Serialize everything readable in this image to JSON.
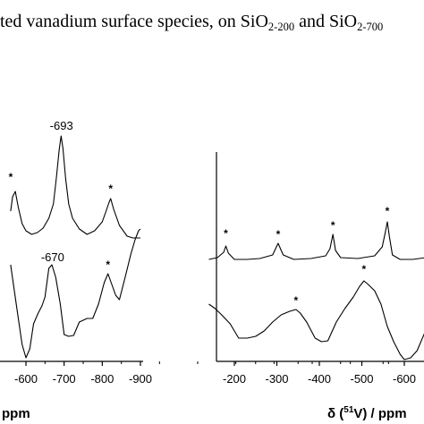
{
  "caption": {
    "part1": "ted vanadium surface species, on SiO",
    "sub1": "2-200",
    "part2": " and SiO",
    "sub2": "2-700"
  },
  "chart_data": [
    {
      "type": "line",
      "xlabel_visible": "ppm",
      "x_tick_labels": [
        "-600",
        "-700",
        "-800",
        "-900"
      ],
      "xlim": [
        -560,
        -900
      ],
      "x_reversed": true,
      "series": [
        {
          "points": [
            [
              -560,
              236
            ],
            [
              -565,
              220
            ],
            [
              -572,
              214
            ],
            [
              -580,
              232
            ],
            [
              -590,
              250
            ],
            [
              -600,
              258
            ],
            [
              -615,
              262
            ],
            [
              -630,
              260
            ],
            [
              -645,
              255
            ],
            [
              -660,
              244
            ],
            [
              -672,
              228
            ],
            [
              -680,
              198
            ],
            [
              -687,
              168
            ],
            [
              -692,
              152
            ],
            [
              -697,
              166
            ],
            [
              -704,
              200
            ],
            [
              -712,
              228
            ],
            [
              -722,
              244
            ],
            [
              -740,
              256
            ],
            [
              -760,
              262
            ],
            [
              -780,
              258
            ],
            [
              -800,
              248
            ],
            [
              -810,
              236
            ],
            [
              -818,
              226
            ],
            [
              -822,
              222
            ],
            [
              -830,
              234
            ],
            [
              -845,
              252
            ],
            [
              -865,
              264
            ],
            [
              -880,
              266
            ],
            [
              -892,
              266
            ],
            [
              -900,
              266
            ]
          ]
        },
        {
          "points": [
            [
              -560,
              296
            ],
            [
              -568,
              320
            ],
            [
              -578,
              350
            ],
            [
              -590,
              385
            ],
            [
              -600,
              400
            ],
            [
              -610,
              390
            ],
            [
              -620,
              362
            ],
            [
              -632,
              350
            ],
            [
              -642,
              342
            ],
            [
              -650,
              332
            ],
            [
              -660,
              300
            ],
            [
              -668,
              296
            ],
            [
              -678,
              310
            ],
            [
              -690,
              340
            ],
            [
              -700,
              374
            ],
            [
              -712,
              376
            ],
            [
              -725,
              375
            ],
            [
              -740,
              360
            ],
            [
              -760,
              356
            ],
            [
              -775,
              356
            ],
            [
              -790,
              340
            ],
            [
              -805,
              316
            ],
            [
              -815,
              306
            ],
            [
              -825,
              318
            ],
            [
              -835,
              330
            ],
            [
              -845,
              335
            ],
            [
              -860,
              310
            ],
            [
              -875,
              284
            ],
            [
              -886,
              268
            ],
            [
              -895,
              258
            ],
            [
              -900,
              256
            ]
          ]
        }
      ],
      "peak_labels": [
        {
          "x": -693,
          "text": "-693"
        },
        {
          "x": -670,
          "text": "-670"
        }
      ],
      "asterisks": [
        "*",
        "*",
        "*"
      ]
    },
    {
      "type": "line",
      "xlabel_prefix": "δ (",
      "xlabel_sup": "51",
      "xlabel_suffix": "V) / ppm",
      "x_tick_labels": [
        "-200",
        "-300",
        "-400",
        "-500",
        "-600"
      ],
      "xlim": [
        -140,
        -660
      ],
      "x_reversed": true,
      "series": [
        {
          "points": [
            [
              -140,
              290
            ],
            [
              -160,
              288
            ],
            [
              -175,
              282
            ],
            [
              -180,
              275
            ],
            [
              -186,
              283
            ],
            [
              -200,
              290
            ],
            [
              -230,
              290
            ],
            [
              -260,
              289
            ],
            [
              -290,
              285
            ],
            [
              -303,
              272
            ],
            [
              -315,
              285
            ],
            [
              -340,
              290
            ],
            [
              -380,
              289
            ],
            [
              -415,
              286
            ],
            [
              -425,
              278
            ],
            [
              -432,
              262
            ],
            [
              -438,
              280
            ],
            [
              -450,
              288
            ],
            [
              -490,
              289
            ],
            [
              -530,
              286
            ],
            [
              -548,
              276
            ],
            [
              -556,
              258
            ],
            [
              -560,
              248
            ],
            [
              -565,
              265
            ],
            [
              -572,
              285
            ],
            [
              -590,
              290
            ],
            [
              -620,
              290
            ],
            [
              -650,
              288
            ],
            [
              -660,
              288
            ]
          ]
        },
        {
          "points": [
            [
              -140,
              340
            ],
            [
              -155,
              345
            ],
            [
              -170,
              352
            ],
            [
              -190,
              362
            ],
            [
              -210,
              378
            ],
            [
              -230,
              378
            ],
            [
              -250,
              376
            ],
            [
              -270,
              370
            ],
            [
              -290,
              360
            ],
            [
              -310,
              352
            ],
            [
              -330,
              348
            ],
            [
              -345,
              346
            ],
            [
              -355,
              350
            ],
            [
              -370,
              360
            ],
            [
              -390,
              378
            ],
            [
              -405,
              382
            ],
            [
              -420,
              381
            ],
            [
              -440,
              360
            ],
            [
              -460,
              345
            ],
            [
              -480,
              332
            ],
            [
              -495,
              320
            ],
            [
              -505,
              314
            ],
            [
              -515,
              318
            ],
            [
              -530,
              325
            ],
            [
              -545,
              340
            ],
            [
              -560,
              365
            ],
            [
              -575,
              382
            ],
            [
              -590,
              396
            ],
            [
              -600,
              402
            ],
            [
              -615,
              400
            ],
            [
              -630,
              392
            ],
            [
              -648,
              372
            ],
            [
              -660,
              362
            ]
          ]
        }
      ],
      "asterisks": [
        "*",
        "*",
        "*",
        "*",
        "*",
        "*"
      ]
    }
  ]
}
